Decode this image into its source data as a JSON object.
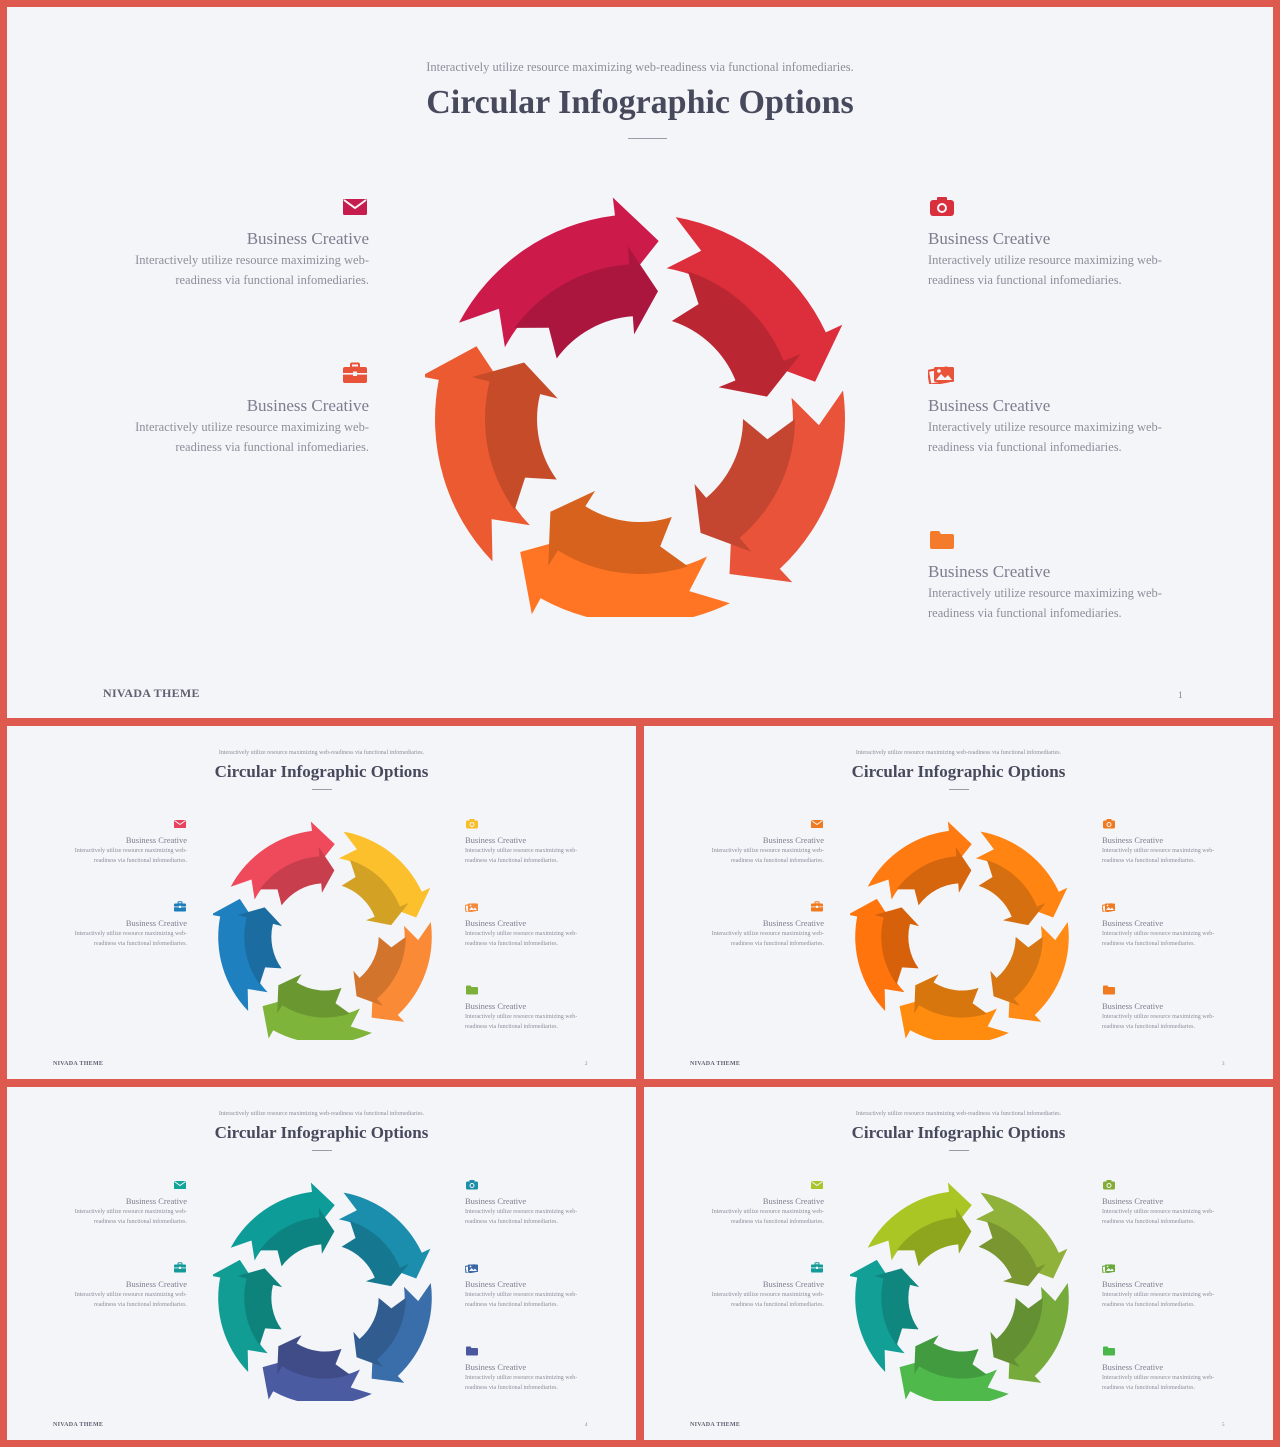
{
  "slides": [
    {
      "subtitle": "Interactively utilize resource maximizing web-readiness via functional infomediaries.",
      "title": "Circular Infographic Options",
      "brand": "NIVADA THEME",
      "page": "1",
      "items": [
        {
          "title": "Business Creative",
          "text": "Interactively utilize resource maximizing web-readiness via functional infomediaries.",
          "icon": "envelope-icon",
          "color": "#c71d4e"
        },
        {
          "title": "Business Creative",
          "text": "Interactively utilize resource maximizing web-readiness via functional infomediaries.",
          "icon": "briefcase-icon",
          "color": "#e9533a"
        },
        {
          "title": "Business Creative",
          "text": "Interactively utilize resource maximizing web-readiness via functional infomediaries.",
          "icon": "camera-icon",
          "color": "#d9303d"
        },
        {
          "title": "Business Creative",
          "text": "Interactively utilize resource maximizing web-readiness via functional infomediaries.",
          "icon": "images-icon",
          "color": "#e9533a"
        },
        {
          "title": "Business Creative",
          "text": "Interactively utilize resource maximizing web-readiness via functional infomediaries.",
          "icon": "folder-icon",
          "color": "#f47b2b"
        }
      ],
      "cycle_colors": [
        "#cc1a4a",
        "#dd2e3b",
        "#e9533a",
        "#ff7524",
        "#ec5a31"
      ]
    },
    {
      "subtitle": "Interactively utilize resource maximizing web-readiness via functional infomediaries.",
      "title": "Circular Infographic Options",
      "brand": "NIVADA THEME",
      "page": "2",
      "items": [
        {
          "title": "Business Creative",
          "text": "Interactively utilize resource maximizing web-readiness via functional infomediaries.",
          "icon": "envelope-icon",
          "color": "#e8435b"
        },
        {
          "title": "Business Creative",
          "text": "Interactively utilize resource maximizing web-readiness via functional infomediaries.",
          "icon": "briefcase-icon",
          "color": "#1c7db9"
        },
        {
          "title": "Business Creative",
          "text": "Interactively utilize resource maximizing web-readiness via functional infomediaries.",
          "icon": "camera-icon",
          "color": "#f6bd27"
        },
        {
          "title": "Business Creative",
          "text": "Interactively utilize resource maximizing web-readiness via functional infomediaries.",
          "icon": "images-icon",
          "color": "#f48a3a"
        },
        {
          "title": "Business Creative",
          "text": "Interactively utilize resource maximizing web-readiness via functional infomediaries.",
          "icon": "folder-icon",
          "color": "#7cb03a"
        }
      ],
      "cycle_colors": [
        "#ef4a5c",
        "#fbc02b",
        "#fb8a36",
        "#7fb43a",
        "#1f80c0"
      ]
    },
    {
      "subtitle": "Interactively utilize resource maximizing web-readiness via functional infomediaries.",
      "title": "Circular Infographic Options",
      "brand": "NIVADA THEME",
      "page": "3",
      "items": [
        {
          "title": "Business Creative",
          "text": "Interactively utilize resource maximizing web-readiness via functional infomediaries.",
          "icon": "envelope-icon",
          "color": "#f07a1f"
        },
        {
          "title": "Business Creative",
          "text": "Interactively utilize resource maximizing web-readiness via functional infomediaries.",
          "icon": "briefcase-icon",
          "color": "#f07a1f"
        },
        {
          "title": "Business Creative",
          "text": "Interactively utilize resource maximizing web-readiness via functional infomediaries.",
          "icon": "camera-icon",
          "color": "#f07a1f"
        },
        {
          "title": "Business Creative",
          "text": "Interactively utilize resource maximizing web-readiness via functional infomediaries.",
          "icon": "images-icon",
          "color": "#f07a1f"
        },
        {
          "title": "Business Creative",
          "text": "Interactively utilize resource maximizing web-readiness via functional infomediaries.",
          "icon": "folder-icon",
          "color": "#f07a1f"
        }
      ],
      "cycle_colors": [
        "#ff7a10",
        "#ff8412",
        "#ff8b16",
        "#ff8c0f",
        "#ff740c"
      ]
    },
    {
      "subtitle": "Interactively utilize resource maximizing web-readiness via functional infomediaries.",
      "title": "Circular Infographic Options",
      "brand": "NIVADA THEME",
      "page": "4",
      "items": [
        {
          "title": "Business Creative",
          "text": "Interactively utilize resource maximizing web-readiness via functional infomediaries.",
          "icon": "envelope-icon",
          "color": "#13a59a"
        },
        {
          "title": "Business Creative",
          "text": "Interactively utilize resource maximizing web-readiness via functional infomediaries.",
          "icon": "briefcase-icon",
          "color": "#159a9c"
        },
        {
          "title": "Business Creative",
          "text": "Interactively utilize resource maximizing web-readiness via functional infomediaries.",
          "icon": "camera-icon",
          "color": "#1d8fa8"
        },
        {
          "title": "Business Creative",
          "text": "Interactively utilize resource maximizing web-readiness via functional infomediaries.",
          "icon": "images-icon",
          "color": "#3a67a6"
        },
        {
          "title": "Business Creative",
          "text": "Interactively utilize resource maximizing web-readiness via functional infomediaries.",
          "icon": "folder-icon",
          "color": "#4a58a0"
        }
      ],
      "cycle_colors": [
        "#0e9c99",
        "#1a8eac",
        "#3a6eaa",
        "#4b5ba2",
        "#119c94"
      ]
    },
    {
      "subtitle": "Interactively utilize resource maximizing web-readiness via functional infomediaries.",
      "title": "Circular Infographic Options",
      "brand": "NIVADA THEME",
      "page": "5",
      "items": [
        {
          "title": "Business Creative",
          "text": "Interactively utilize resource maximizing web-readiness via functional infomediaries.",
          "icon": "envelope-icon",
          "color": "#a8c52a"
        },
        {
          "title": "Business Creative",
          "text": "Interactively utilize resource maximizing web-readiness via functional infomediaries.",
          "icon": "briefcase-icon",
          "color": "#129b98"
        },
        {
          "title": "Business Creative",
          "text": "Interactively utilize resource maximizing web-readiness via functional infomediaries.",
          "icon": "camera-icon",
          "color": "#85ad35"
        },
        {
          "title": "Business Creative",
          "text": "Interactively utilize resource maximizing web-readiness via functional infomediaries.",
          "icon": "images-icon",
          "color": "#6aa93a"
        },
        {
          "title": "Business Creative",
          "text": "Interactively utilize resource maximizing web-readiness via functional infomediaries.",
          "icon": "folder-icon",
          "color": "#4ab74a"
        }
      ],
      "cycle_colors": [
        "#a9c624",
        "#91b23a",
        "#76ab3c",
        "#4fba4b",
        "#12a096"
      ]
    }
  ]
}
